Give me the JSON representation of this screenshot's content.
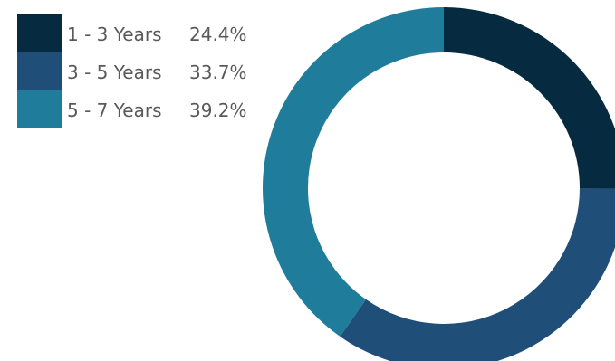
{
  "chart_data": {
    "type": "pie",
    "variant": "donut",
    "title": "",
    "legend_position": "top-left",
    "series": [
      {
        "categories": [
          "1 - 3 Years",
          "3 - 5 Years",
          "5 - 7 Years"
        ],
        "values": [
          24.4,
          33.7,
          39.2
        ],
        "value_labels": [
          "24.4%",
          "33.7%",
          "39.2%"
        ],
        "colors": [
          "#062b40",
          "#1f4e79",
          "#1f7d9b"
        ]
      }
    ]
  }
}
